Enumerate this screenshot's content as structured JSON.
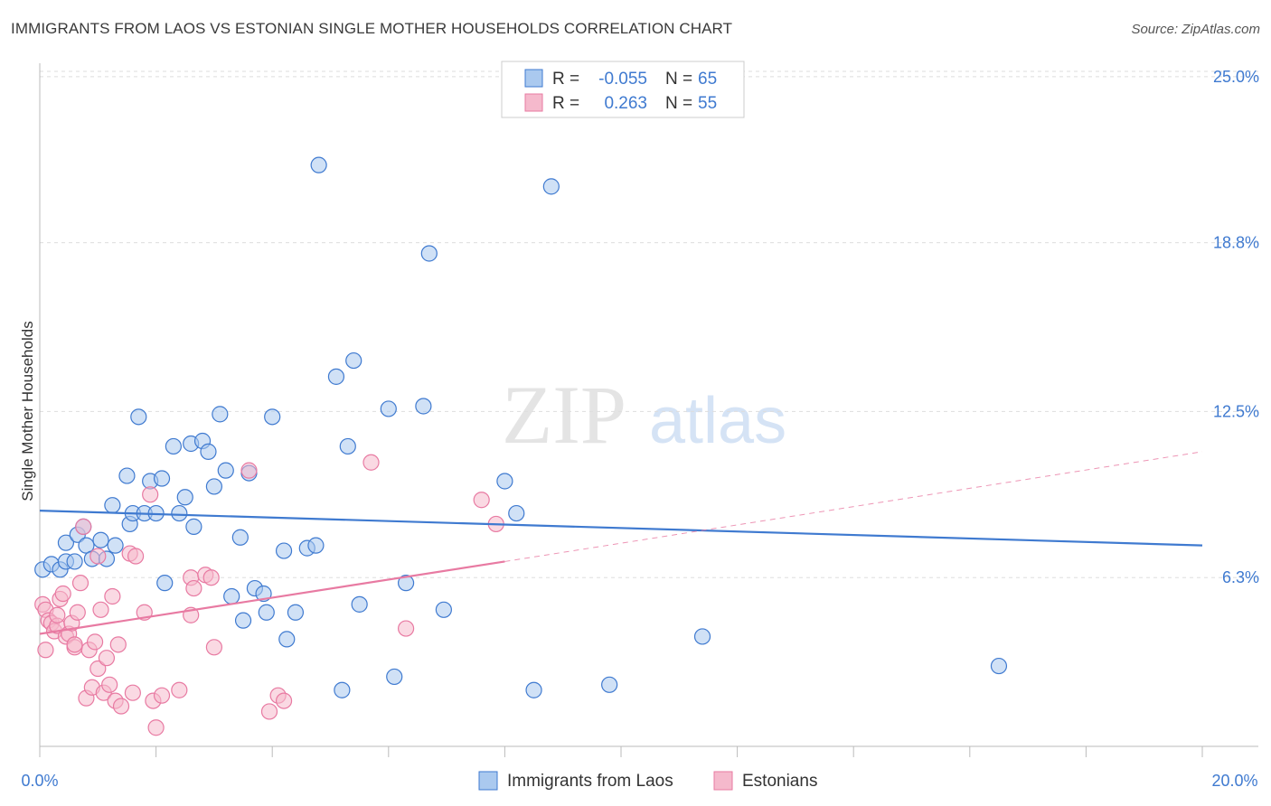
{
  "title": "IMMIGRANTS FROM LAOS VS ESTONIAN SINGLE MOTHER HOUSEHOLDS CORRELATION CHART",
  "source": "Source: ZipAtlas.com",
  "watermark": {
    "zip": "ZIP",
    "atlas": "atlas"
  },
  "colors": {
    "blue": "#3f7ad0",
    "blue_fill": "#aac9ef",
    "pink": "#e87aa2",
    "pink_fill": "#f5b9cc",
    "grid": "#dddddd"
  },
  "legend": {
    "rows": [
      {
        "r_label": "R =",
        "r_value": "-0.055",
        "n_label": "N =",
        "n_value": "65"
      },
      {
        "r_label": "R =",
        "r_value": "0.263",
        "n_label": "N =",
        "n_value": "55"
      }
    ]
  },
  "bottom_legend": [
    "Immigrants from Laos",
    "Estonians"
  ],
  "chart_data": {
    "type": "scatter",
    "title": "IMMIGRANTS FROM LAOS VS ESTONIAN SINGLE MOTHER HOUSEHOLDS CORRELATION CHART",
    "xlabel": "",
    "ylabel": "Single Mother Households",
    "xlim": [
      0,
      20
    ],
    "ylim": [
      0,
      25.5
    ],
    "x_tick_labels": [
      "0.0%",
      "20.0%"
    ],
    "y_ticks": [
      6.3,
      12.5,
      18.8,
      25.0
    ],
    "y_tick_labels": [
      "6.3%",
      "12.5%",
      "18.8%",
      "25.0%"
    ],
    "grid": "horizontal dashed",
    "legend_position": "top-center",
    "series": [
      {
        "name": "Immigrants from Laos",
        "color": "#3f7ad0",
        "trend": {
          "x": [
            0,
            20
          ],
          "y": [
            8.8,
            7.5
          ]
        },
        "points": [
          [
            0.05,
            6.6
          ],
          [
            0.2,
            6.8
          ],
          [
            0.35,
            6.6
          ],
          [
            0.45,
            6.9
          ],
          [
            0.6,
            6.9
          ],
          [
            0.45,
            7.6
          ],
          [
            0.65,
            7.9
          ],
          [
            0.75,
            8.2
          ],
          [
            0.8,
            7.5
          ],
          [
            0.9,
            7.0
          ],
          [
            1.05,
            7.7
          ],
          [
            1.15,
            7.0
          ],
          [
            1.25,
            9.0
          ],
          [
            1.3,
            7.5
          ],
          [
            1.5,
            10.1
          ],
          [
            1.55,
            8.3
          ],
          [
            1.6,
            8.7
          ],
          [
            1.7,
            12.3
          ],
          [
            1.8,
            8.7
          ],
          [
            1.9,
            9.9
          ],
          [
            2.0,
            8.7
          ],
          [
            2.1,
            10.0
          ],
          [
            2.15,
            6.1
          ],
          [
            2.3,
            11.2
          ],
          [
            2.4,
            8.7
          ],
          [
            2.5,
            9.3
          ],
          [
            2.6,
            11.3
          ],
          [
            2.65,
            8.2
          ],
          [
            2.8,
            11.4
          ],
          [
            2.9,
            11.0
          ],
          [
            3.0,
            9.7
          ],
          [
            3.1,
            12.4
          ],
          [
            3.2,
            10.3
          ],
          [
            3.3,
            5.6
          ],
          [
            3.45,
            7.8
          ],
          [
            3.5,
            4.7
          ],
          [
            3.6,
            10.2
          ],
          [
            3.7,
            5.9
          ],
          [
            3.85,
            5.7
          ],
          [
            3.9,
            5.0
          ],
          [
            4.0,
            12.3
          ],
          [
            4.2,
            7.3
          ],
          [
            4.25,
            4.0
          ],
          [
            4.4,
            5.0
          ],
          [
            4.6,
            7.4
          ],
          [
            4.75,
            7.5
          ],
          [
            4.8,
            21.7
          ],
          [
            5.1,
            13.8
          ],
          [
            5.2,
            2.1
          ],
          [
            5.3,
            11.2
          ],
          [
            5.4,
            14.4
          ],
          [
            5.5,
            5.3
          ],
          [
            6.0,
            12.6
          ],
          [
            6.1,
            2.6
          ],
          [
            6.3,
            6.1
          ],
          [
            6.6,
            12.7
          ],
          [
            6.7,
            18.4
          ],
          [
            6.95,
            5.1
          ],
          [
            8.0,
            9.9
          ],
          [
            8.2,
            8.7
          ],
          [
            8.5,
            2.1
          ],
          [
            8.8,
            20.9
          ],
          [
            9.8,
            2.3
          ],
          [
            11.4,
            4.1
          ],
          [
            16.5,
            3.0
          ]
        ]
      },
      {
        "name": "Estonians",
        "color": "#e87aa2",
        "trend": {
          "x": [
            0,
            8
          ],
          "y": [
            4.2,
            6.9
          ],
          "dashed_extension": {
            "x": [
              8,
              20
            ],
            "y": [
              6.9,
              11.0
            ]
          }
        },
        "points": [
          [
            0.05,
            5.3
          ],
          [
            0.1,
            5.1
          ],
          [
            0.15,
            4.7
          ],
          [
            0.2,
            4.6
          ],
          [
            0.25,
            4.3
          ],
          [
            0.3,
            4.5
          ],
          [
            0.35,
            5.5
          ],
          [
            0.4,
            5.7
          ],
          [
            0.45,
            4.1
          ],
          [
            0.5,
            4.2
          ],
          [
            0.55,
            4.6
          ],
          [
            0.6,
            3.7
          ],
          [
            0.65,
            5.0
          ],
          [
            0.7,
            6.1
          ],
          [
            0.75,
            8.2
          ],
          [
            0.8,
            1.8
          ],
          [
            0.85,
            3.6
          ],
          [
            0.9,
            2.2
          ],
          [
            0.95,
            3.9
          ],
          [
            1.0,
            7.1
          ],
          [
            1.0,
            2.9
          ],
          [
            1.05,
            5.1
          ],
          [
            1.1,
            2.0
          ],
          [
            1.15,
            3.3
          ],
          [
            1.2,
            2.3
          ],
          [
            1.25,
            5.6
          ],
          [
            1.3,
            1.7
          ],
          [
            1.35,
            3.8
          ],
          [
            1.4,
            1.5
          ],
          [
            1.55,
            7.2
          ],
          [
            1.6,
            2.0
          ],
          [
            1.65,
            7.1
          ],
          [
            1.8,
            5.0
          ],
          [
            1.9,
            9.4
          ],
          [
            1.95,
            1.7
          ],
          [
            2.0,
            0.7
          ],
          [
            2.1,
            1.9
          ],
          [
            2.4,
            2.1
          ],
          [
            2.6,
            6.3
          ],
          [
            2.6,
            4.9
          ],
          [
            2.65,
            5.9
          ],
          [
            2.85,
            6.4
          ],
          [
            2.95,
            6.3
          ],
          [
            3.0,
            3.7
          ],
          [
            3.6,
            10.3
          ],
          [
            3.95,
            1.3
          ],
          [
            4.1,
            1.9
          ],
          [
            4.2,
            1.7
          ],
          [
            5.7,
            10.6
          ],
          [
            6.3,
            4.4
          ],
          [
            7.6,
            9.2
          ],
          [
            7.85,
            8.3
          ],
          [
            0.1,
            3.6
          ],
          [
            0.6,
            3.8
          ],
          [
            0.3,
            4.9
          ]
        ]
      }
    ]
  }
}
